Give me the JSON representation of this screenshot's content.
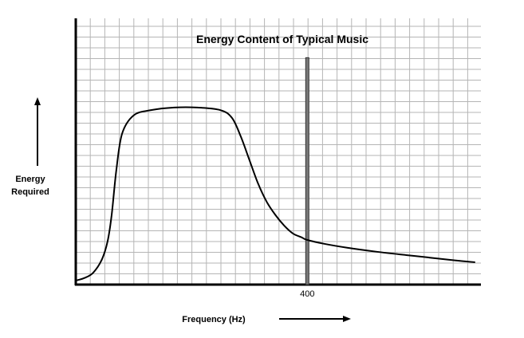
{
  "chart_data": {
    "type": "line",
    "title": "Energy Content of Typical Music",
    "xlabel": "Frequency (Hz)",
    "ylabel_lines": [
      "Energy",
      "Required"
    ],
    "x_tick_labels": [
      {
        "x": 400,
        "label": "400"
      }
    ],
    "xlim": [
      0,
      700
    ],
    "ylim": [
      0,
      1
    ],
    "grid": true,
    "marker_line": {
      "x": 400,
      "y_top": 0.85
    },
    "series": [
      {
        "x": [
          0,
          15,
          30,
          45,
          55,
          62,
          70,
          80,
          100,
          130,
          170,
          210,
          250,
          270,
          285,
          300,
          315,
          330,
          345,
          360,
          375,
          390,
          400,
          430,
          470,
          520,
          560,
          610,
          655,
          690
        ],
        "y": [
          0.0,
          0.01,
          0.03,
          0.08,
          0.15,
          0.25,
          0.42,
          0.56,
          0.63,
          0.65,
          0.66,
          0.66,
          0.65,
          0.62,
          0.55,
          0.46,
          0.37,
          0.3,
          0.25,
          0.21,
          0.18,
          0.165,
          0.155,
          0.14,
          0.125,
          0.11,
          0.1,
          0.088,
          0.077,
          0.07
        ]
      }
    ]
  }
}
